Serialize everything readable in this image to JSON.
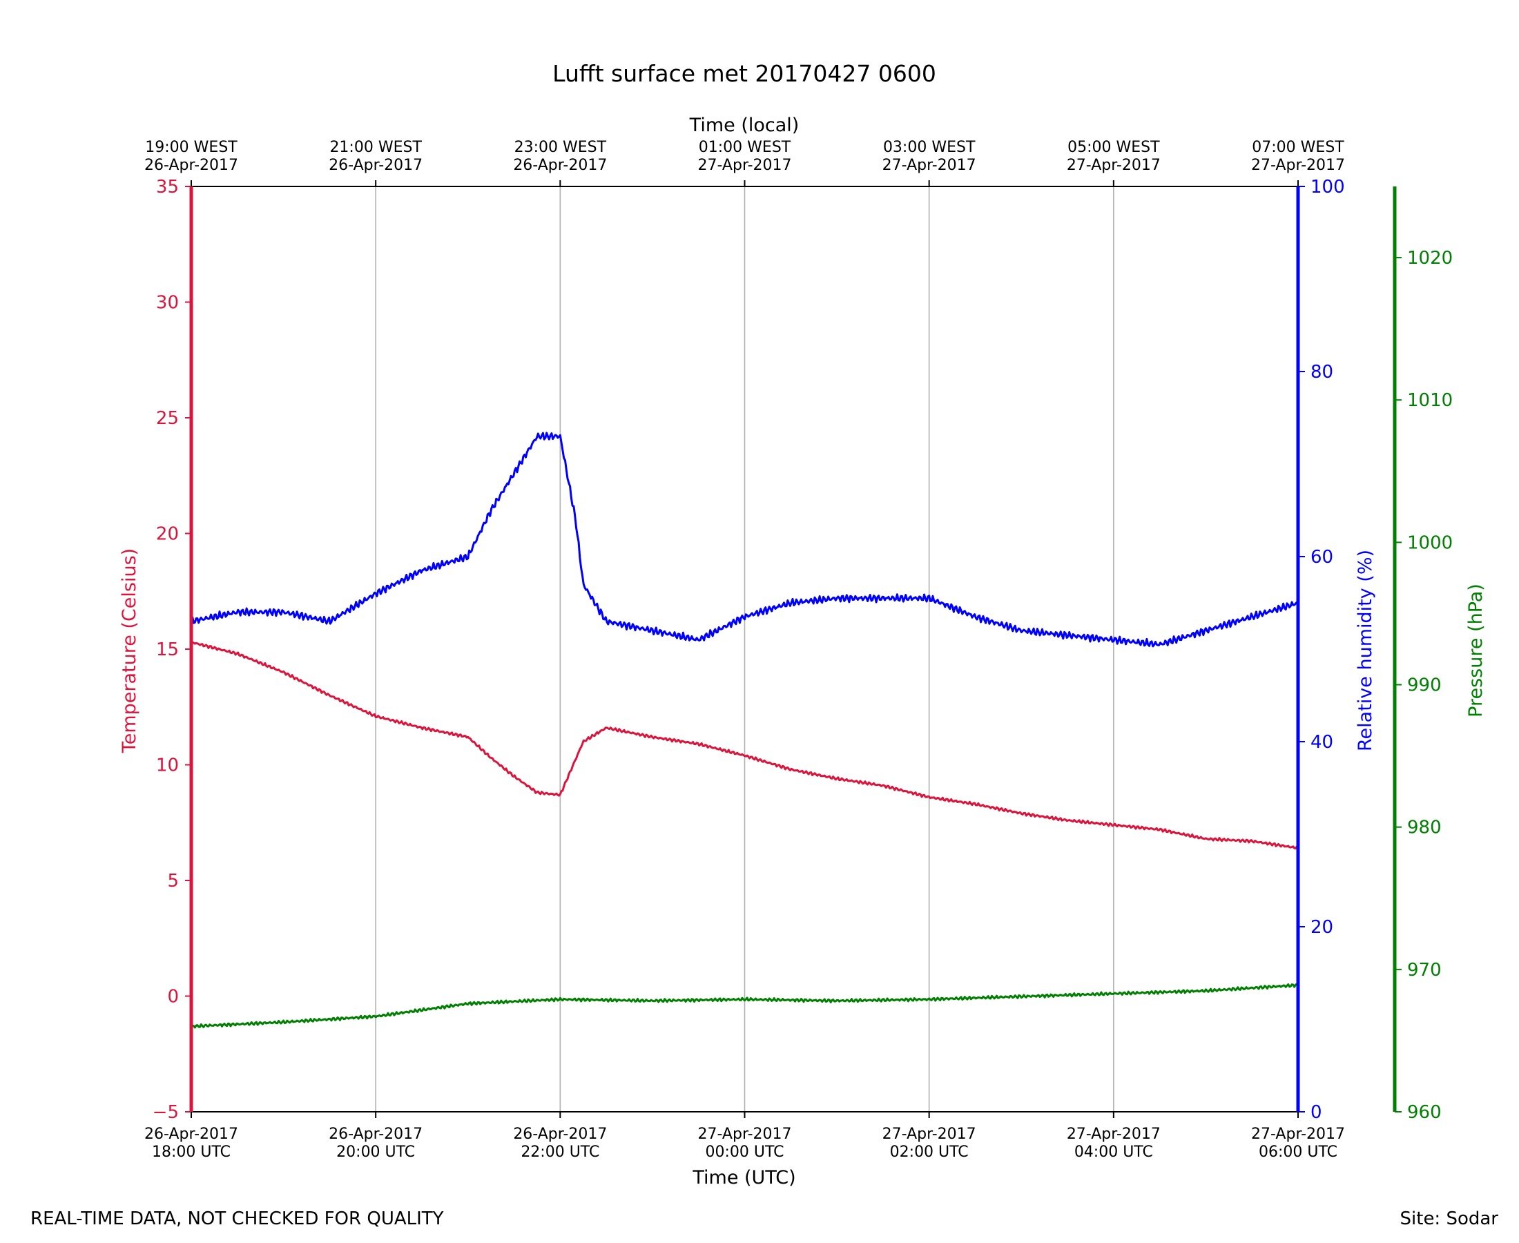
{
  "chart_data": {
    "type": "line",
    "title": "Lufft surface met 20170427 0600",
    "xlabel": "Time (UTC)",
    "xlabel_top": "Time (local)",
    "x_ticks": [
      {
        "h": 0,
        "line1": "26-Apr-2017",
        "line2": "18:00 UTC"
      },
      {
        "h": 2,
        "line1": "26-Apr-2017",
        "line2": "20:00 UTC"
      },
      {
        "h": 4,
        "line1": "26-Apr-2017",
        "line2": "22:00 UTC"
      },
      {
        "h": 6,
        "line1": "27-Apr-2017",
        "line2": "00:00 UTC"
      },
      {
        "h": 8,
        "line1": "27-Apr-2017",
        "line2": "02:00 UTC"
      },
      {
        "h": 10,
        "line1": "27-Apr-2017",
        "line2": "04:00 UTC"
      },
      {
        "h": 12,
        "line1": "27-Apr-2017",
        "line2": "06:00 UTC"
      }
    ],
    "x_ticks_top": [
      {
        "h": 0,
        "line1": "19:00 WEST",
        "line2": "26-Apr-2017"
      },
      {
        "h": 2,
        "line1": "21:00 WEST",
        "line2": "26-Apr-2017"
      },
      {
        "h": 4,
        "line1": "23:00 WEST",
        "line2": "26-Apr-2017"
      },
      {
        "h": 6,
        "line1": "01:00 WEST",
        "line2": "27-Apr-2017"
      },
      {
        "h": 8,
        "line1": "03:00 WEST",
        "line2": "27-Apr-2017"
      },
      {
        "h": 10,
        "line1": "05:00 WEST",
        "line2": "27-Apr-2017"
      },
      {
        "h": 12,
        "line1": "07:00 WEST",
        "line2": "27-Apr-2017"
      }
    ],
    "xlim": [
      0,
      12
    ],
    "grid": "vertical",
    "axes": {
      "temperature": {
        "label": "Temperature (Celsius)",
        "range": [
          -5,
          35
        ],
        "ticks": [
          -5,
          0,
          5,
          10,
          15,
          20,
          25,
          30,
          35
        ],
        "color": "#dc143c",
        "side": "left"
      },
      "humidity": {
        "label": "Relative humidity (%)",
        "range": [
          0,
          100
        ],
        "ticks": [
          0,
          20,
          40,
          60,
          80,
          100
        ],
        "color": "#0000ff",
        "side": "right"
      },
      "pressure": {
        "label": "Pressure (hPa)",
        "range": [
          960,
          1025
        ],
        "ticks": [
          960,
          970,
          980,
          990,
          1000,
          1010,
          1020
        ],
        "color": "#008000",
        "side": "right-offset"
      }
    },
    "series": [
      {
        "axis": "temperature",
        "color": "#dc143c",
        "x": [
          "26-Apr-2017 18:00",
          "26-Apr-2017 18:30",
          "26-Apr-2017 19:00",
          "26-Apr-2017 19:30",
          "26-Apr-2017 20:00",
          "26-Apr-2017 20:30",
          "26-Apr-2017 21:00",
          "26-Apr-2017 21:15",
          "26-Apr-2017 21:30",
          "26-Apr-2017 21:45",
          "26-Apr-2017 22:00",
          "26-Apr-2017 22:15",
          "26-Apr-2017 22:30",
          "26-Apr-2017 23:00",
          "26-Apr-2017 23:30",
          "27-Apr-2017 00:00",
          "27-Apr-2017 00:30",
          "27-Apr-2017 01:00",
          "27-Apr-2017 01:30",
          "27-Apr-2017 02:00",
          "27-Apr-2017 02:30",
          "27-Apr-2017 03:00",
          "27-Apr-2017 03:30",
          "27-Apr-2017 04:00",
          "27-Apr-2017 04:30",
          "27-Apr-2017 05:00",
          "27-Apr-2017 05:30",
          "27-Apr-2017 06:00"
        ],
        "values": [
          15.3,
          14.8,
          14.0,
          13.0,
          12.1,
          11.6,
          11.2,
          10.3,
          9.5,
          8.8,
          8.7,
          11.0,
          11.6,
          11.2,
          10.9,
          10.4,
          9.8,
          9.4,
          9.1,
          8.6,
          8.3,
          7.9,
          7.6,
          7.4,
          7.2,
          6.8,
          6.7,
          6.4
        ]
      },
      {
        "axis": "humidity",
        "color": "#0000ff",
        "x": [
          "26-Apr-2017 18:00",
          "26-Apr-2017 18:30",
          "26-Apr-2017 19:00",
          "26-Apr-2017 19:30",
          "26-Apr-2017 20:00",
          "26-Apr-2017 20:30",
          "26-Apr-2017 21:00",
          "26-Apr-2017 21:15",
          "26-Apr-2017 21:30",
          "26-Apr-2017 21:45",
          "26-Apr-2017 22:00",
          "26-Apr-2017 22:10",
          "26-Apr-2017 22:15",
          "26-Apr-2017 22:30",
          "26-Apr-2017 23:00",
          "26-Apr-2017 23:30",
          "27-Apr-2017 00:00",
          "27-Apr-2017 00:30",
          "27-Apr-2017 01:00",
          "27-Apr-2017 01:30",
          "27-Apr-2017 02:00",
          "27-Apr-2017 02:30",
          "27-Apr-2017 03:00",
          "27-Apr-2017 03:30",
          "27-Apr-2017 04:00",
          "27-Apr-2017 04:30",
          "27-Apr-2017 05:00",
          "27-Apr-2017 05:30",
          "27-Apr-2017 06:00"
        ],
        "values": [
          53.0,
          54.0,
          54.0,
          53.0,
          56.0,
          58.5,
          60.0,
          65.0,
          69.0,
          73.0,
          73.0,
          64.0,
          57.0,
          53.0,
          52.0,
          51.0,
          53.5,
          55.0,
          55.5,
          55.5,
          55.5,
          53.5,
          52.0,
          51.5,
          51.0,
          50.5,
          52.0,
          53.5,
          55.0
        ]
      },
      {
        "axis": "pressure",
        "color": "#008000",
        "x": [
          "26-Apr-2017 18:00",
          "26-Apr-2017 19:00",
          "26-Apr-2017 20:00",
          "26-Apr-2017 21:00",
          "26-Apr-2017 22:00",
          "26-Apr-2017 23:00",
          "27-Apr-2017 00:00",
          "27-Apr-2017 01:00",
          "27-Apr-2017 02:00",
          "27-Apr-2017 03:00",
          "27-Apr-2017 04:00",
          "27-Apr-2017 05:00",
          "27-Apr-2017 06:00"
        ],
        "values": [
          966.0,
          966.3,
          966.7,
          967.6,
          967.9,
          967.8,
          967.9,
          967.8,
          967.9,
          968.1,
          968.3,
          968.5,
          968.9
        ]
      }
    ]
  },
  "footer": {
    "left": "REAL-TIME DATA, NOT CHECKED FOR QUALITY",
    "right": "Site: Sodar"
  }
}
